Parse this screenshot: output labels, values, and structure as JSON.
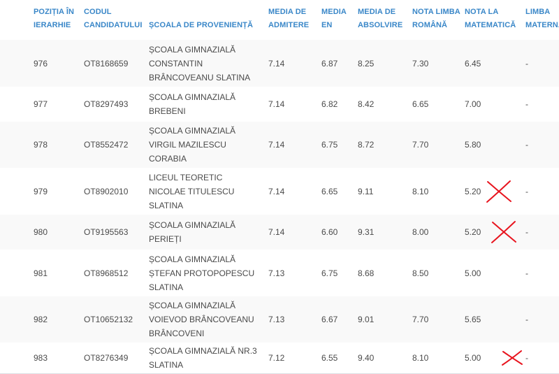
{
  "colors": {
    "header": "#3a87c8",
    "mark": "#e8141e"
  },
  "columns": [
    {
      "key": "rank",
      "label": "POZIȚIA ÎN IERARHIE"
    },
    {
      "key": "code",
      "label": "CODUL CANDIDATULUI"
    },
    {
      "key": "school",
      "label": "ȘCOALA DE PROVENIENȚĂ"
    },
    {
      "key": "admit",
      "label": "MEDIA DE ADMITERE"
    },
    {
      "key": "en",
      "label": "MEDIA EN"
    },
    {
      "key": "abs",
      "label": "MEDIA DE ABSOLVIRE"
    },
    {
      "key": "rom",
      "label": "NOTA LIMBA ROMÂNĂ"
    },
    {
      "key": "mat",
      "label": "NOTA LA MATEMATICĂ"
    },
    {
      "key": "lm",
      "label": "LIMBA MATERNĂ"
    }
  ],
  "rows": [
    {
      "rank": "976",
      "code": "OT8168659",
      "school": "ȘCOALA GIMNAZIALĂ CONSTANTIN BRÂNCOVEANU SLATINA",
      "admit": "7.14",
      "en": "6.87",
      "abs": "8.25",
      "rom": "7.30",
      "mat": "6.45",
      "lm": "-",
      "marked": false
    },
    {
      "rank": "977",
      "code": "OT8297493",
      "school": "ȘCOALA GIMNAZIALĂ BREBENI",
      "admit": "7.14",
      "en": "6.82",
      "abs": "8.42",
      "rom": "6.65",
      "mat": "7.00",
      "lm": "-",
      "marked": false
    },
    {
      "rank": "978",
      "code": "OT8552472",
      "school": "ȘCOALA GIMNAZIALĂ VIRGIL MAZILESCU CORABIA",
      "admit": "7.14",
      "en": "6.75",
      "abs": "8.72",
      "rom": "7.70",
      "mat": "5.80",
      "lm": "-",
      "marked": false
    },
    {
      "rank": "979",
      "code": "OT8902010",
      "school": "LICEUL TEORETIC NICOLAE TITULESCU SLATINA",
      "admit": "7.14",
      "en": "6.65",
      "abs": "9.11",
      "rom": "8.10",
      "mat": "5.20",
      "lm": "-",
      "marked": true
    },
    {
      "rank": "980",
      "code": "OT9195563",
      "school": "ȘCOALA GIMNAZIALĂ PERIEȚI",
      "admit": "7.14",
      "en": "6.60",
      "abs": "9.31",
      "rom": "8.00",
      "mat": "5.20",
      "lm": "-",
      "marked": true
    },
    {
      "rank": "981",
      "code": "OT8968512",
      "school": "ȘCOALA GIMNAZIALĂ ȘTEFAN PROTOPOPESCU SLATINA",
      "admit": "7.13",
      "en": "6.75",
      "abs": "8.68",
      "rom": "8.50",
      "mat": "5.00",
      "lm": "-",
      "marked": false
    },
    {
      "rank": "982",
      "code": "OT10652132",
      "school": "ȘCOALA GIMNAZIALĂ VOIEVOD BRÂNCOVEANU BRÂNCOVENI",
      "admit": "7.13",
      "en": "6.67",
      "abs": "9.01",
      "rom": "7.70",
      "mat": "5.65",
      "lm": "-",
      "marked": false
    },
    {
      "rank": "983",
      "code": "OT8276349",
      "school": "ȘCOALA GIMNAZIALĂ NR.3 SLATINA",
      "admit": "7.12",
      "en": "6.55",
      "abs": "9.40",
      "rom": "8.10",
      "mat": "5.00",
      "lm": "-",
      "marked": true
    }
  ]
}
